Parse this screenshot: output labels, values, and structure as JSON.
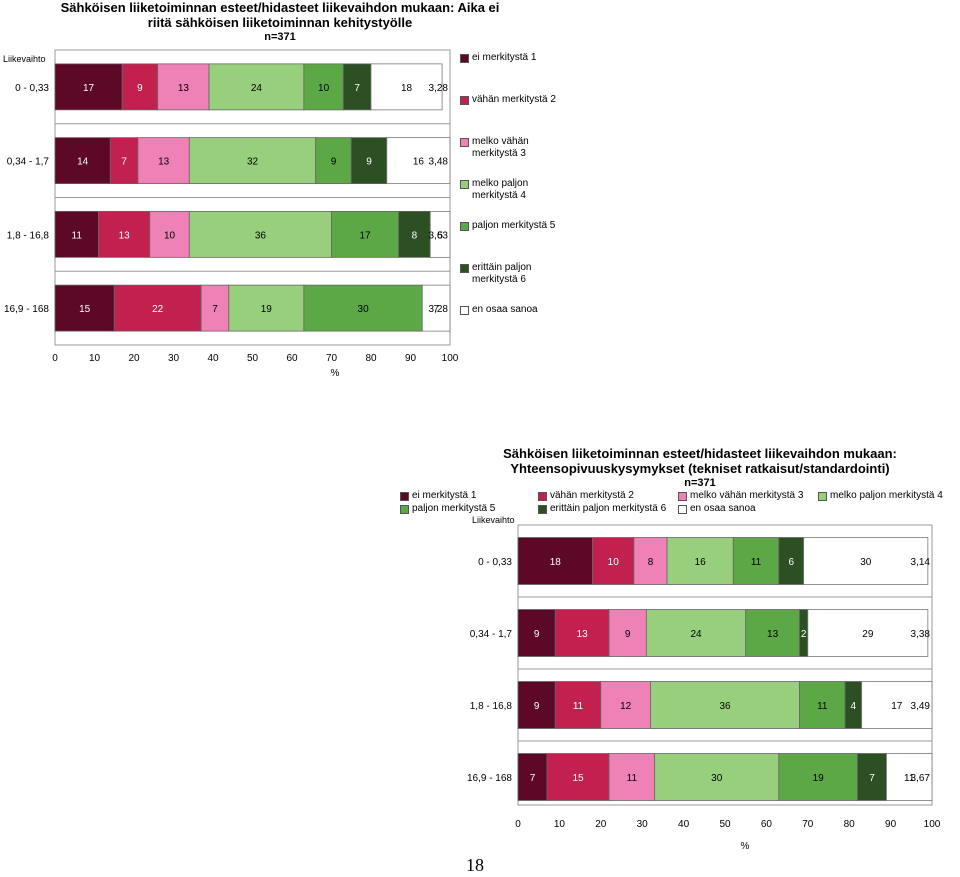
{
  "page_number": "18",
  "categories": [
    "ei merkitystä 1",
    "vähän merkitystä 2",
    "melko vähän merkitystä 3",
    "melko paljon merkitystä 4",
    "paljon merkitystä 5",
    "erittäin paljon merkitystä 6",
    "en osaa sanoa"
  ],
  "colors": [
    "#5c0826",
    "#c2204f",
    "#ee82b6",
    "#98cf7d",
    "#5ca846",
    "#2c4f24",
    "#ffffff"
  ],
  "legend1_lines": [
    [
      "ei merkitystä 1"
    ],
    [
      "vähän merkitystä 2"
    ],
    [
      "melko vähän",
      "merkitystä 3"
    ],
    [
      "melko paljon",
      "merkitystä 4"
    ],
    [
      "paljon merkitystä 5"
    ],
    [
      "erittäin paljon",
      "merkitystä 6"
    ],
    [
      "en osaa sanoa"
    ]
  ],
  "chart_data": [
    {
      "type": "bar",
      "orientation": "horizontal-stacked-100",
      "title_lines": [
        "Sähköisen liiketoiminnan esteet/hidasteet liikevaihdon mukaan: Aika ei",
        "riitä sähköisen liiketoiminnan kehitystyölle"
      ],
      "n_label": "n=371",
      "ylabel": "Liikevaihto",
      "xlabel": "%",
      "xlim": [
        0,
        100
      ],
      "xticks": [
        "0",
        "10",
        "20",
        "30",
        "40",
        "50",
        "60",
        "70",
        "80",
        "90",
        "100"
      ],
      "groups": [
        "0 - 0,33",
        "0,34 - 1,7",
        "1,8 - 16,8",
        "16,9 - 168"
      ],
      "series": [
        {
          "name": "ei merkitystä 1",
          "values": [
            17,
            14,
            11,
            15
          ]
        },
        {
          "name": "vähän merkitystä 2",
          "values": [
            9,
            7,
            13,
            22
          ]
        },
        {
          "name": "melko vähän merkitystä 3",
          "values": [
            13,
            13,
            10,
            7
          ]
        },
        {
          "name": "melko paljon merkitystä 4",
          "values": [
            24,
            32,
            36,
            19
          ]
        },
        {
          "name": "paljon merkitystä 5",
          "values": [
            10,
            9,
            17,
            30
          ]
        },
        {
          "name": "erittäin paljon merkitystä 6",
          "values": [
            7,
            9,
            8,
            0
          ]
        },
        {
          "name": "en osaa sanoa",
          "values": [
            18,
            16,
            5,
            7
          ]
        }
      ],
      "averages": [
        "3,28",
        "3,48",
        "3,63",
        "3,28"
      ]
    },
    {
      "type": "bar",
      "orientation": "horizontal-stacked-100",
      "title_lines": [
        "Sähköisen liiketoiminnan esteet/hidasteet liikevaihdon mukaan:",
        "Yhteensopivuuskysymykset (tekniset ratkaisut/standardointi)"
      ],
      "n_label": "n=371",
      "ylabel": "Liikevaihto",
      "xlabel": "%",
      "xlim": [
        0,
        100
      ],
      "xticks": [
        "0",
        "10",
        "20",
        "30",
        "40",
        "50",
        "60",
        "70",
        "80",
        "90",
        "100"
      ],
      "groups": [
        "0 - 0,33",
        "0,34 - 1,7",
        "1,8 - 16,8",
        "16,9 - 168"
      ],
      "series": [
        {
          "name": "ei merkitystä 1",
          "values": [
            18,
            9,
            9,
            7
          ]
        },
        {
          "name": "vähän merkitystä 2",
          "values": [
            10,
            13,
            11,
            15
          ]
        },
        {
          "name": "melko vähän merkitystä 3",
          "values": [
            8,
            9,
            12,
            11
          ]
        },
        {
          "name": "melko paljon merkitystä 4",
          "values": [
            16,
            24,
            36,
            30
          ]
        },
        {
          "name": "paljon merkitystä 5",
          "values": [
            11,
            13,
            11,
            19
          ]
        },
        {
          "name": "erittäin paljon merkitystä 6",
          "values": [
            6,
            2,
            4,
            7
          ]
        },
        {
          "name": "en osaa sanoa",
          "values": [
            30,
            29,
            17,
            11
          ]
        }
      ],
      "averages": [
        "3,14",
        "3,38",
        "3,49",
        "3,67"
      ]
    }
  ]
}
